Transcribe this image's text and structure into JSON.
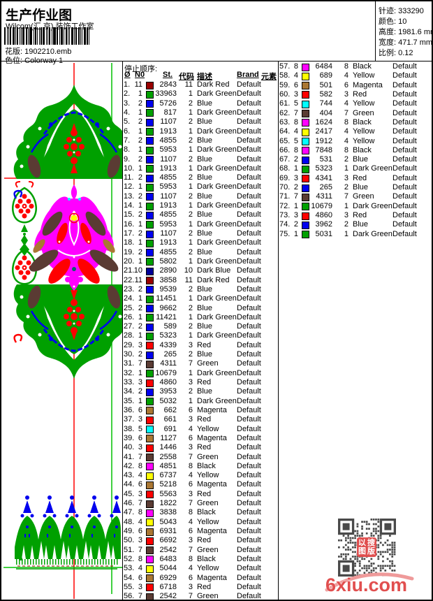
{
  "header": {
    "title": "生产作业图",
    "studio": "Wilcom(汇 京) 装饰工作室",
    "pattern_label": "花版:",
    "pattern_value": "1902210.emb",
    "colorway_label": "色位:",
    "colorway_value": "Colorway 1"
  },
  "info_box": {
    "stitches_label": "针迹:",
    "stitches_value": "333290",
    "colors_label": "颜色:",
    "colors_value": "10",
    "height_label": "高度:",
    "height_value": "1981.6 mm",
    "width_label": "宽度:",
    "width_value": "471.7 mm",
    "scale_label": "比例:",
    "scale_value": "0.12"
  },
  "table": {
    "stop_sequence_label": "停止顺序:",
    "headers": [
      "Ø",
      "N0",
      "St.",
      "代码",
      "描述",
      "Brand",
      "元素"
    ],
    "needle_colors": {
      "1": "#00A000",
      "2": "#0000EE",
      "3": "#FF0000",
      "4": "#FFFF00",
      "5": "#00FFFF",
      "6": "#AA7733",
      "7": "#5A3B33",
      "8": "#FF00FF",
      "10": "#000099",
      "11": "#990000"
    },
    "col1": [
      [
        "1",
        "11",
        "2843",
        "11",
        "Dark Red",
        "Default"
      ],
      [
        "2",
        "1",
        "33963",
        "1",
        "Dark Green",
        "Default"
      ],
      [
        "3",
        "2",
        "5726",
        "2",
        "Blue",
        "Default"
      ],
      [
        "4",
        "1",
        "817",
        "1",
        "Dark Green",
        "Default"
      ],
      [
        "5",
        "2",
        "1107",
        "2",
        "Blue",
        "Default"
      ],
      [
        "6",
        "1",
        "1913",
        "1",
        "Dark Green",
        "Default"
      ],
      [
        "7",
        "2",
        "4855",
        "2",
        "Blue",
        "Default"
      ],
      [
        "8",
        "1",
        "5953",
        "1",
        "Dark Green",
        "Default"
      ],
      [
        "9",
        "2",
        "1107",
        "2",
        "Blue",
        "Default"
      ],
      [
        "10",
        "1",
        "1913",
        "1",
        "Dark Green",
        "Default"
      ],
      [
        "11",
        "2",
        "4855",
        "2",
        "Blue",
        "Default"
      ],
      [
        "12",
        "1",
        "5953",
        "1",
        "Dark Green",
        "Default"
      ],
      [
        "13",
        "2",
        "1107",
        "2",
        "Blue",
        "Default"
      ],
      [
        "14",
        "1",
        "1913",
        "1",
        "Dark Green",
        "Default"
      ],
      [
        "15",
        "2",
        "4855",
        "2",
        "Blue",
        "Default"
      ],
      [
        "16",
        "1",
        "5953",
        "1",
        "Dark Green",
        "Default"
      ],
      [
        "17",
        "2",
        "1107",
        "2",
        "Blue",
        "Default"
      ],
      [
        "18",
        "1",
        "1913",
        "1",
        "Dark Green",
        "Default"
      ],
      [
        "19",
        "2",
        "4855",
        "2",
        "Blue",
        "Default"
      ],
      [
        "20",
        "1",
        "5802",
        "1",
        "Dark Green",
        "Default"
      ],
      [
        "21",
        "10",
        "2890",
        "10",
        "Dark Blue",
        "Default"
      ],
      [
        "22",
        "11",
        "3858",
        "11",
        "Dark Red",
        "Default"
      ],
      [
        "23",
        "2",
        "9539",
        "2",
        "Blue",
        "Default"
      ],
      [
        "24",
        "1",
        "11451",
        "1",
        "Dark Green",
        "Default"
      ],
      [
        "25",
        "2",
        "9662",
        "2",
        "Blue",
        "Default"
      ],
      [
        "26",
        "1",
        "11421",
        "1",
        "Dark Green",
        "Default"
      ],
      [
        "27",
        "2",
        "589",
        "2",
        "Blue",
        "Default"
      ],
      [
        "28",
        "1",
        "5323",
        "1",
        "Dark Green",
        "Default"
      ],
      [
        "29",
        "3",
        "4339",
        "3",
        "Red",
        "Default"
      ],
      [
        "30",
        "2",
        "265",
        "2",
        "Blue",
        "Default"
      ],
      [
        "31",
        "7",
        "4311",
        "7",
        "Green",
        "Default"
      ],
      [
        "32",
        "1",
        "10679",
        "1",
        "Dark Green",
        "Default"
      ],
      [
        "33",
        "3",
        "4860",
        "3",
        "Red",
        "Default"
      ],
      [
        "34",
        "2",
        "3953",
        "2",
        "Blue",
        "Default"
      ],
      [
        "35",
        "1",
        "5032",
        "1",
        "Dark Green",
        "Default"
      ],
      [
        "36",
        "6",
        "662",
        "6",
        "Magenta",
        "Default"
      ],
      [
        "37",
        "3",
        "661",
        "3",
        "Red",
        "Default"
      ],
      [
        "38",
        "5",
        "691",
        "4",
        "Yellow",
        "Default"
      ],
      [
        "39",
        "6",
        "1127",
        "6",
        "Magenta",
        "Default"
      ],
      [
        "40",
        "3",
        "1446",
        "3",
        "Red",
        "Default"
      ],
      [
        "41",
        "7",
        "2558",
        "7",
        "Green",
        "Default"
      ],
      [
        "42",
        "8",
        "4851",
        "8",
        "Black",
        "Default"
      ],
      [
        "43",
        "4",
        "6737",
        "4",
        "Yellow",
        "Default"
      ],
      [
        "44",
        "6",
        "5218",
        "6",
        "Magenta",
        "Default"
      ],
      [
        "45",
        "3",
        "5563",
        "3",
        "Red",
        "Default"
      ],
      [
        "46",
        "7",
        "1822",
        "7",
        "Green",
        "Default"
      ],
      [
        "47",
        "8",
        "3838",
        "8",
        "Black",
        "Default"
      ],
      [
        "48",
        "4",
        "5043",
        "4",
        "Yellow",
        "Default"
      ],
      [
        "49",
        "6",
        "6931",
        "6",
        "Magenta",
        "Default"
      ],
      [
        "50",
        "3",
        "6692",
        "3",
        "Red",
        "Default"
      ],
      [
        "51",
        "7",
        "2542",
        "7",
        "Green",
        "Default"
      ],
      [
        "52",
        "8",
        "6483",
        "8",
        "Black",
        "Default"
      ],
      [
        "53",
        "4",
        "5044",
        "4",
        "Yellow",
        "Default"
      ],
      [
        "54",
        "6",
        "6929",
        "6",
        "Magenta",
        "Default"
      ],
      [
        "55",
        "3",
        "6718",
        "3",
        "Red",
        "Default"
      ],
      [
        "56",
        "7",
        "2542",
        "7",
        "Green",
        "Default"
      ]
    ],
    "col2": [
      [
        "57",
        "8",
        "6484",
        "8",
        "Black",
        "Default"
      ],
      [
        "58",
        "4",
        "689",
        "4",
        "Yellow",
        "Default"
      ],
      [
        "59",
        "6",
        "501",
        "6",
        "Magenta",
        "Default"
      ],
      [
        "60",
        "3",
        "582",
        "3",
        "Red",
        "Default"
      ],
      [
        "61",
        "5",
        "744",
        "4",
        "Yellow",
        "Default"
      ],
      [
        "62",
        "7",
        "404",
        "7",
        "Green",
        "Default"
      ],
      [
        "63",
        "8",
        "1624",
        "8",
        "Black",
        "Default"
      ],
      [
        "64",
        "4",
        "2417",
        "4",
        "Yellow",
        "Default"
      ],
      [
        "65",
        "5",
        "1912",
        "4",
        "Yellow",
        "Default"
      ],
      [
        "66",
        "8",
        "7848",
        "8",
        "Black",
        "Default"
      ],
      [
        "67",
        "2",
        "531",
        "2",
        "Blue",
        "Default"
      ],
      [
        "68",
        "1",
        "5323",
        "1",
        "Dark Green",
        "Default"
      ],
      [
        "69",
        "3",
        "4341",
        "3",
        "Red",
        "Default"
      ],
      [
        "70",
        "2",
        "265",
        "2",
        "Blue",
        "Default"
      ],
      [
        "71",
        "7",
        "4311",
        "7",
        "Green",
        "Default"
      ],
      [
        "72",
        "1",
        "10679",
        "1",
        "Dark Green",
        "Default"
      ],
      [
        "73",
        "3",
        "4860",
        "3",
        "Red",
        "Default"
      ],
      [
        "74",
        "2",
        "3962",
        "2",
        "Blue",
        "Default"
      ],
      [
        "75",
        "1",
        "5031",
        "1",
        "Dark Green",
        "Default"
      ]
    ]
  },
  "watermark": {
    "text": "6xiu.com",
    "seal_chars": [
      "以",
      "搜",
      "图",
      "版"
    ]
  }
}
